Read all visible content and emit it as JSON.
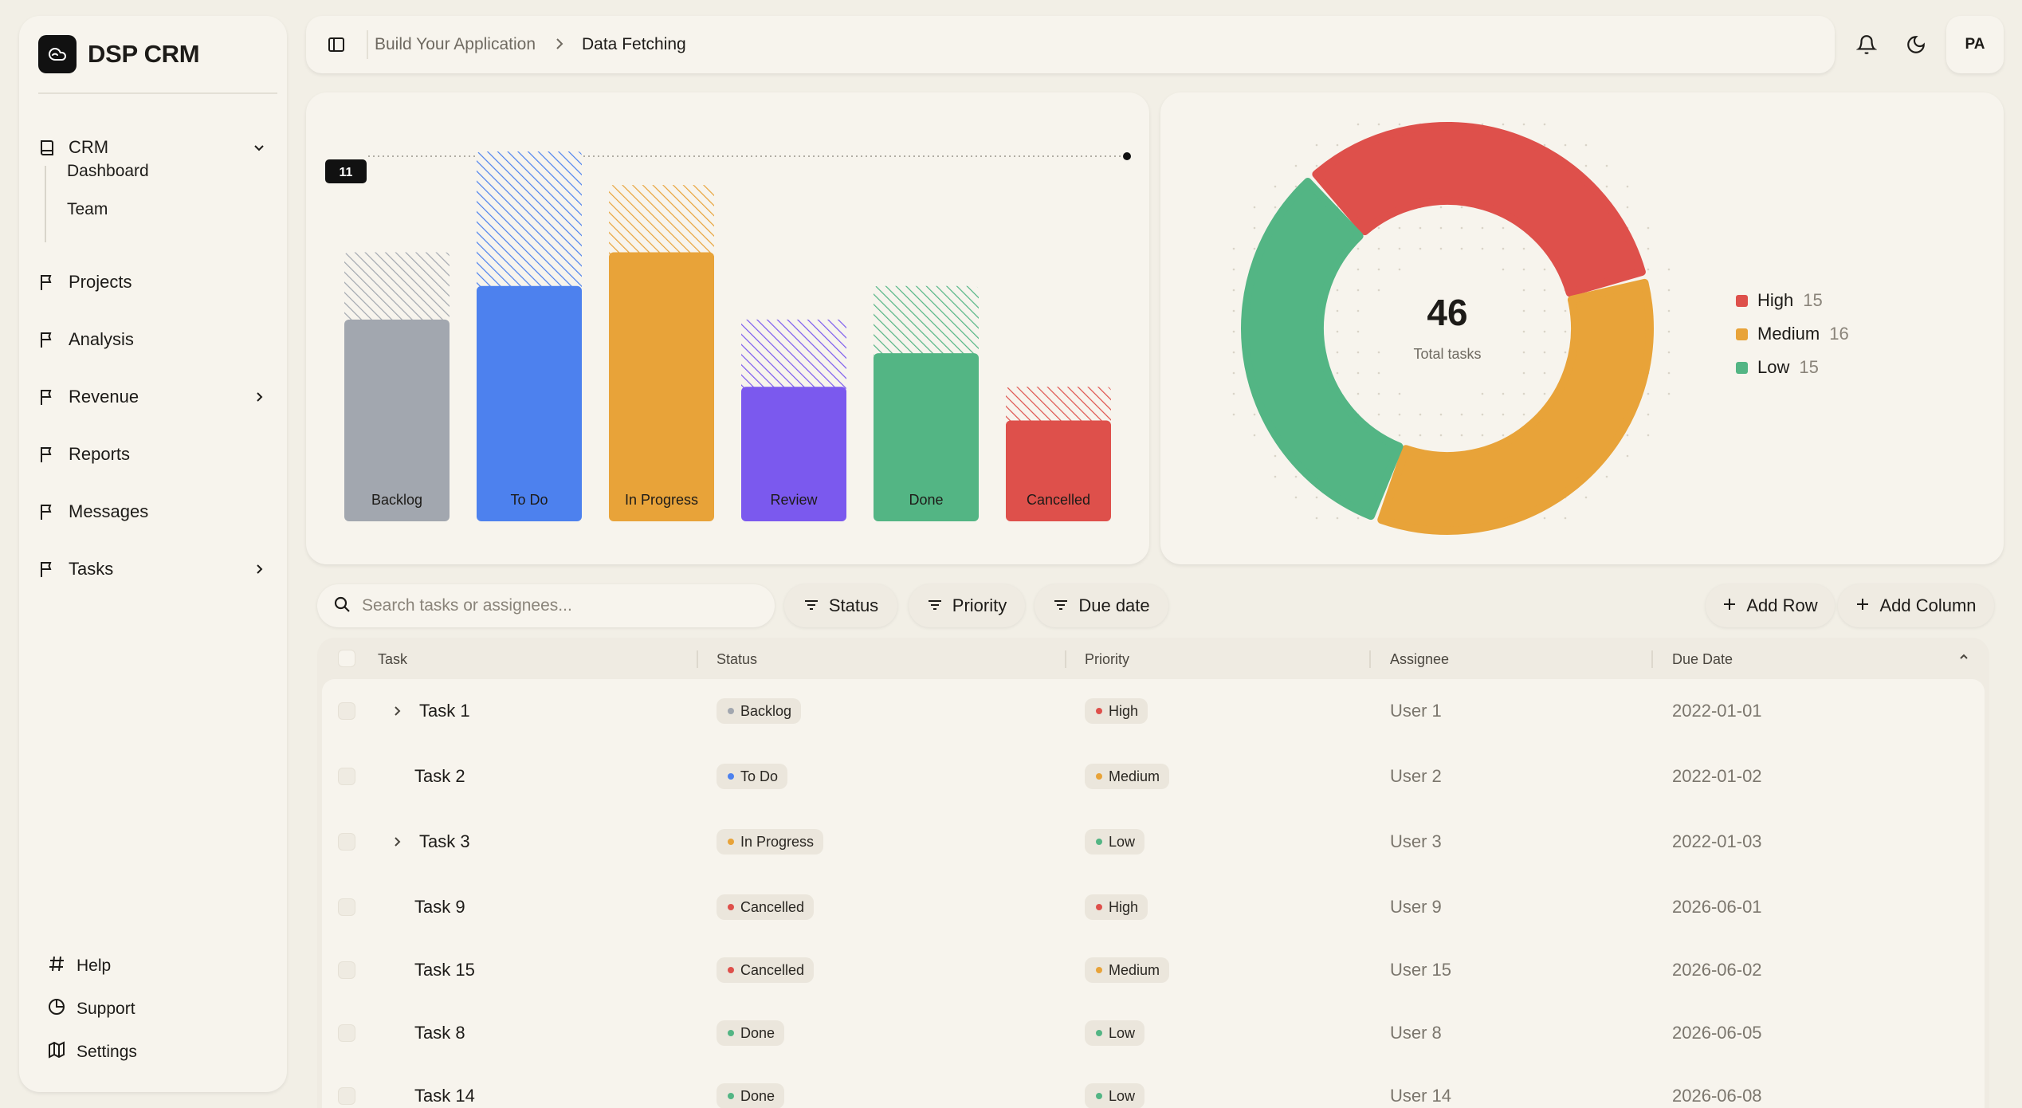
{
  "brand": {
    "name": "DSP CRM"
  },
  "sidebar": {
    "items": [
      {
        "label": "CRM"
      },
      {
        "label": "Projects"
      },
      {
        "label": "Analysis"
      },
      {
        "label": "Revenue"
      },
      {
        "label": "Reports"
      },
      {
        "label": "Messages"
      },
      {
        "label": "Tasks"
      }
    ],
    "crm_sub": [
      {
        "label": "Dashboard"
      },
      {
        "label": "Team"
      }
    ],
    "footer": [
      {
        "label": "Help"
      },
      {
        "label": "Support"
      },
      {
        "label": "Settings"
      }
    ]
  },
  "header": {
    "breadcrumb": [
      "Build Your Application",
      "Data Fetching"
    ],
    "avatar_initials": "PA"
  },
  "chart_data": [
    {
      "type": "bar",
      "categories": [
        "Backlog",
        "To Do",
        "In Progress",
        "Review",
        "Done",
        "Cancelled"
      ],
      "values": [
        6,
        7,
        8,
        4,
        5,
        3
      ],
      "stacked_hatched_values": [
        2,
        4,
        2,
        2,
        2,
        1
      ],
      "totals": [
        8,
        11,
        10,
        6,
        7,
        4
      ],
      "ylim": [
        0,
        11
      ],
      "marker_label": "11",
      "colors": [
        "#a2a7af",
        "#4d81ee",
        "#e8a339",
        "#7b59ee",
        "#53b584",
        "#de504b"
      ]
    },
    {
      "type": "pie",
      "categories": [
        "High",
        "Medium",
        "Low"
      ],
      "values": [
        15,
        16,
        15
      ],
      "center_value": "46",
      "center_label": "Total tasks",
      "colors": [
        "#de504b",
        "#e8a339",
        "#53b584"
      ]
    }
  ],
  "legend": [
    {
      "label": "High",
      "count": "15"
    },
    {
      "label": "Medium",
      "count": "16"
    },
    {
      "label": "Low",
      "count": "15"
    }
  ],
  "toolbar": {
    "search_placeholder": "Search tasks or assignees...",
    "filters": [
      "Status",
      "Priority",
      "Due date"
    ],
    "add_row": "Add Row",
    "add_column": "Add Column"
  },
  "table": {
    "columns": [
      "Task",
      "Status",
      "Priority",
      "Assignee",
      "Due Date"
    ],
    "rows": [
      {
        "task": "Task 1",
        "status": "Backlog",
        "priority": "High",
        "assignee": "User 1",
        "due": "2022-01-01",
        "expandable": true
      },
      {
        "task": "Task 2",
        "status": "To Do",
        "priority": "Medium",
        "assignee": "User 2",
        "due": "2022-01-02",
        "expandable": false
      },
      {
        "task": "Task 3",
        "status": "In Progress",
        "priority": "Low",
        "assignee": "User 3",
        "due": "2022-01-03",
        "expandable": true
      },
      {
        "task": "Task 9",
        "status": "Cancelled",
        "priority": "High",
        "assignee": "User 9",
        "due": "2026-06-01",
        "expandable": false
      },
      {
        "task": "Task 15",
        "status": "Cancelled",
        "priority": "Medium",
        "assignee": "User 15",
        "due": "2026-06-02",
        "expandable": false
      },
      {
        "task": "Task 8",
        "status": "Done",
        "priority": "Low",
        "assignee": "User 8",
        "due": "2026-06-05",
        "expandable": false
      },
      {
        "task": "Task 14",
        "status": "Done",
        "priority": "Low",
        "assignee": "User 14",
        "due": "2026-06-08",
        "expandable": false
      }
    ]
  },
  "colors": {
    "status": {
      "Backlog": "#a2a7af",
      "To Do": "#4d81ee",
      "In Progress": "#e8a339",
      "Review": "#7b59ee",
      "Done": "#53b584",
      "Cancelled": "#de504b"
    },
    "priority": {
      "High": "#de504b",
      "Medium": "#e8a339",
      "Low": "#53b584"
    }
  }
}
